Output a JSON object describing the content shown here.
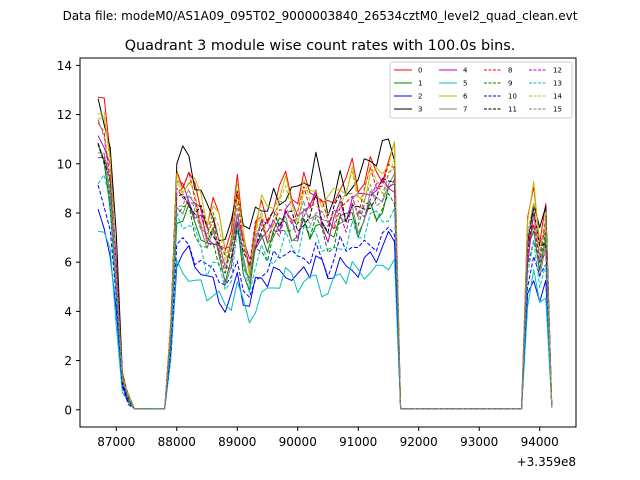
{
  "figure": {
    "suptitle": "Data file: modeM0/AS1A09_095T02_9000003840_26534cztM0_level2_quad_clean.evt",
    "offset_label": "+3.359e8"
  },
  "chart_data": {
    "type": "line",
    "title": "Quadrant 3 module wise count rates with 100.0s bins.",
    "xlabel": "",
    "ylabel": "",
    "xlim": [
      86400,
      94600
    ],
    "ylim": [
      -0.7,
      14.3
    ],
    "x_ticks": [
      87000,
      88000,
      89000,
      90000,
      91000,
      92000,
      93000,
      94000
    ],
    "x_tick_labels": [
      "87000",
      "88000",
      "89000",
      "90000",
      "91000",
      "92000",
      "93000",
      "94000"
    ],
    "y_ticks": [
      0,
      2,
      4,
      6,
      8,
      10,
      12,
      14
    ],
    "y_tick_labels": [
      "0",
      "2",
      "4",
      "6",
      "8",
      "10",
      "12",
      "14"
    ],
    "grid": false,
    "legend_position": "top-right",
    "segments": [
      {
        "x0": 86700,
        "dx": 100,
        "n": 5
      },
      {
        "x0": 87200,
        "dx": 100,
        "n": 6
      },
      {
        "x0": 87800,
        "dx": 100,
        "n": 39
      },
      {
        "x0": 91700,
        "dx": 100,
        "n": 21
      },
      {
        "x0": 93800,
        "dx": 100,
        "n": 5
      }
    ],
    "series": [
      {
        "name": "0",
        "color": "#ff0000",
        "dash": "solid",
        "ratio": 0.95,
        "phase": 0,
        "offset": 0.5,
        "amp": 0.5
      },
      {
        "name": "1",
        "color": "#008000",
        "dash": "solid",
        "ratio": 0.8,
        "phase": 1,
        "offset": 0.2,
        "amp": 0.4
      },
      {
        "name": "2",
        "color": "#0000ff",
        "dash": "solid",
        "ratio": 0.62,
        "phase": 2,
        "offset": 0.0,
        "amp": 0.35
      },
      {
        "name": "3",
        "color": "#000000",
        "dash": "solid",
        "ratio": 0.96,
        "phase": 3,
        "offset": 0.9,
        "amp": 0.55
      },
      {
        "name": "4",
        "color": "#bf00bf",
        "dash": "solid",
        "ratio": 0.86,
        "phase": 4,
        "offset": 0.4,
        "amp": 0.45
      },
      {
        "name": "5",
        "color": "#00bfbf",
        "dash": "solid",
        "ratio": 0.58,
        "phase": 5,
        "offset": -0.3,
        "amp": 0.35
      },
      {
        "name": "6",
        "color": "#bfbf00",
        "dash": "solid",
        "ratio": 0.93,
        "phase": 6,
        "offset": 0.6,
        "amp": 0.5
      },
      {
        "name": "7",
        "color": "#808080",
        "dash": "solid",
        "ratio": 0.82,
        "phase": 7,
        "offset": 0.3,
        "amp": 0.4
      },
      {
        "name": "8",
        "color": "#ff0000",
        "dash": "dashed",
        "ratio": 0.88,
        "phase": 8,
        "offset": 0.4,
        "amp": 0.45
      },
      {
        "name": "9",
        "color": "#008000",
        "dash": "dashed",
        "ratio": 0.79,
        "phase": 9,
        "offset": 0.3,
        "amp": 0.4
      },
      {
        "name": "10",
        "color": "#0000ff",
        "dash": "dashed",
        "ratio": 0.68,
        "phase": 10,
        "offset": 0.1,
        "amp": 0.35
      },
      {
        "name": "11",
        "color": "#000000",
        "dash": "dashed",
        "ratio": 0.85,
        "phase": 11,
        "offset": 0.4,
        "amp": 0.45
      },
      {
        "name": "12",
        "color": "#bf00bf",
        "dash": "dashed",
        "ratio": 0.84,
        "phase": 12,
        "offset": 0.4,
        "amp": 0.45
      },
      {
        "name": "13",
        "color": "#00bfbf",
        "dash": "dashed",
        "ratio": 0.74,
        "phase": 13,
        "offset": 0.1,
        "amp": 0.4
      },
      {
        "name": "14",
        "color": "#bfbf00",
        "dash": "dashed",
        "ratio": 0.9,
        "phase": 14,
        "offset": 0.5,
        "amp": 0.5
      },
      {
        "name": "15",
        "color": "#808080",
        "dash": "dashed",
        "ratio": 0.86,
        "phase": 15,
        "offset": 0.4,
        "amp": 0.45
      }
    ]
  }
}
